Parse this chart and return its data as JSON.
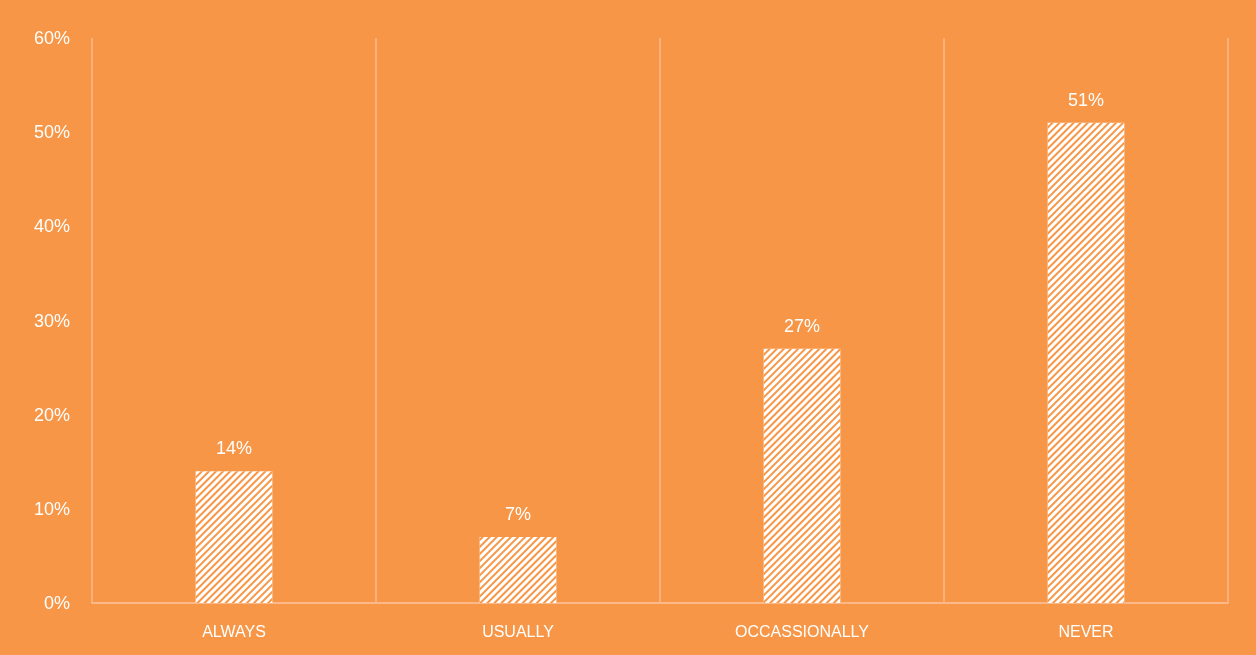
{
  "chart_data": {
    "type": "bar",
    "categories": [
      "ALWAYS",
      "USUALLY",
      "OCCASSIONALLY",
      "NEVER"
    ],
    "values": [
      14,
      7,
      27,
      51
    ],
    "value_labels": [
      "14%",
      "7%",
      "27%",
      "51%"
    ],
    "color": "#ffffff",
    "ylim": [
      0,
      60
    ],
    "yticks": [
      {
        "value": 0,
        "label": "0%"
      },
      {
        "value": 10,
        "label": "10%"
      },
      {
        "value": 20,
        "label": "20%"
      },
      {
        "value": 30,
        "label": "30%"
      },
      {
        "value": 40,
        "label": "40%"
      },
      {
        "value": 50,
        "label": "50%"
      },
      {
        "value": 60,
        "label": "60%"
      }
    ],
    "grid": "x"
  }
}
